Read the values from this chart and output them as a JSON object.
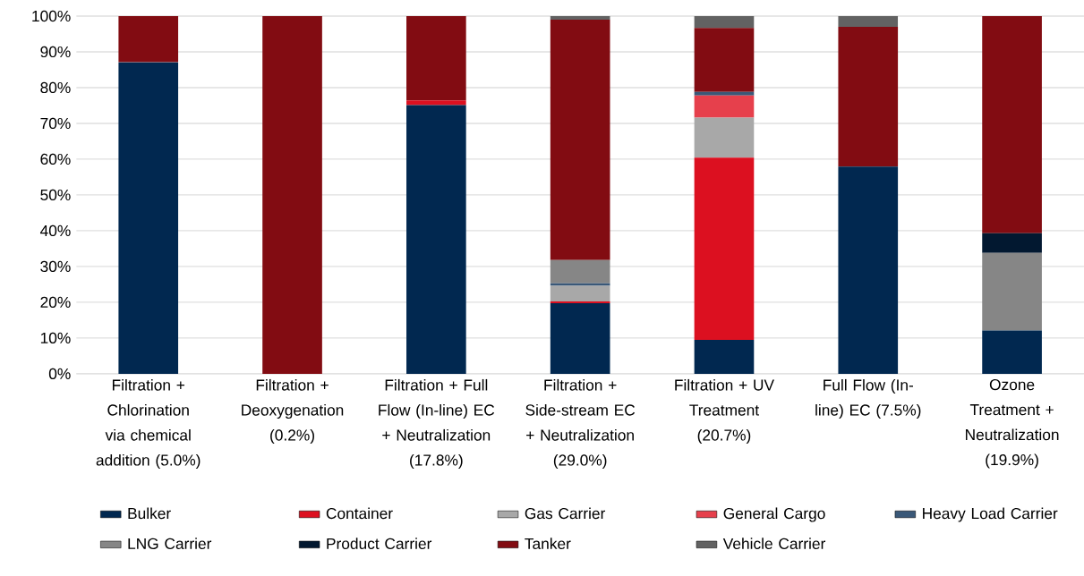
{
  "chart_data": {
    "type": "bar",
    "stacked": true,
    "categories": [
      "Filtration + Chlorination via chemical addition (5.0%)",
      "Filtration + Deoxygenation (0.2%)",
      "Filtration + Full Flow (In-line) EC + Neutralization (17.8%)",
      "Filtration + Side-stream EC + Neutralization (29.0%)",
      "Filtration + UV Treatment (20.7%)",
      "Full Flow (In-line) EC (7.5%)",
      "Ozone Treatment + Neutralization (19.9%)"
    ],
    "series": [
      {
        "name": "Bulker",
        "color": "#012850",
        "values": [
          87.1,
          0,
          75.1,
          19.7,
          9.5,
          57.9,
          12.1
        ]
      },
      {
        "name": "Container",
        "color": "#dc1020",
        "values": [
          0,
          0,
          1.3,
          0.5,
          50.9,
          0,
          0
        ]
      },
      {
        "name": "Gas Carrier",
        "color": "#a8a8a8",
        "values": [
          0,
          0,
          0,
          4.4,
          11.2,
          0,
          0
        ]
      },
      {
        "name": "General Cargo",
        "color": "#e6404c",
        "values": [
          0,
          0,
          0,
          0,
          6.2,
          0,
          0
        ]
      },
      {
        "name": "Heavy Load Carrier",
        "color": "#3a5878",
        "values": [
          0,
          0,
          0,
          0.7,
          1.0,
          0,
          0
        ]
      },
      {
        "name": "LNG Carrier",
        "color": "#868686",
        "values": [
          0,
          0,
          0,
          6.5,
          0,
          0,
          21.7
        ]
      },
      {
        "name": "Product Carrier",
        "color": "#021830",
        "values": [
          0,
          0,
          0,
          0,
          0,
          0,
          5.5
        ]
      },
      {
        "name": "Tanker",
        "color": "#820c12",
        "values": [
          12.9,
          100,
          23.6,
          67.2,
          17.9,
          39.1,
          60.7
        ]
      },
      {
        "name": "Vehicle Carrier",
        "color": "#626262",
        "values": [
          0,
          0,
          0,
          1.0,
          3.3,
          3.0,
          0
        ]
      }
    ],
    "ylim": [
      0,
      100
    ],
    "yticks": [
      {
        "value": 0,
        "label": "0%"
      },
      {
        "value": 10,
        "label": "10%"
      },
      {
        "value": 20,
        "label": "20%"
      },
      {
        "value": 30,
        "label": "30%"
      },
      {
        "value": 40,
        "label": "40%"
      },
      {
        "value": 50,
        "label": "50%"
      },
      {
        "value": 60,
        "label": "60%"
      },
      {
        "value": 70,
        "label": "70%"
      },
      {
        "value": 80,
        "label": "80%"
      },
      {
        "value": 90,
        "label": "90%"
      },
      {
        "value": 100,
        "label": "100%"
      }
    ],
    "grid": "y",
    "legend": "bottom"
  }
}
